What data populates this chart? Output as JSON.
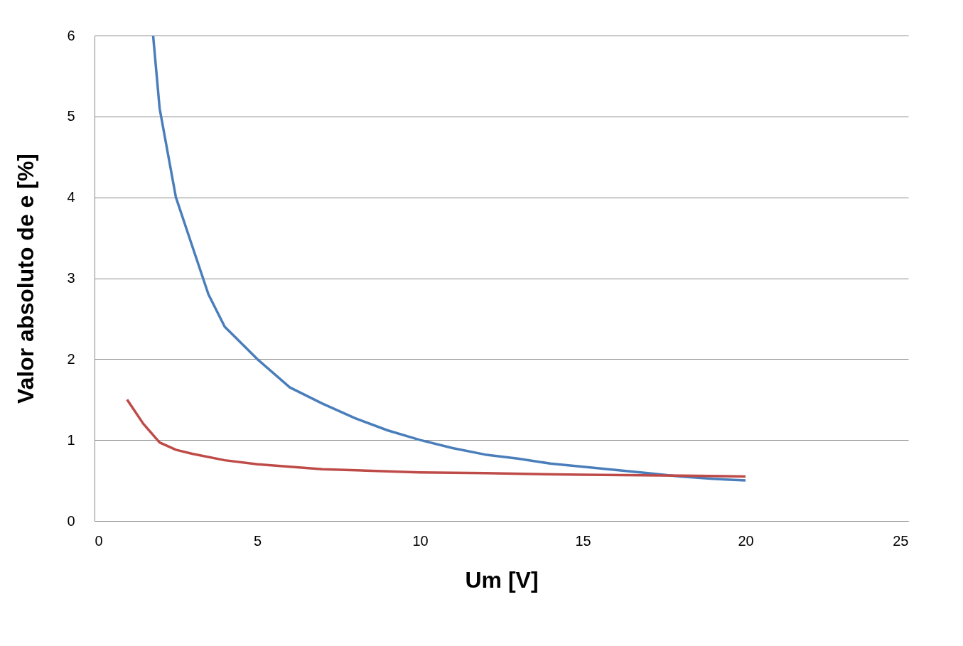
{
  "chart_data": {
    "type": "line",
    "xlabel": "Um [V]",
    "ylabel": "Valor absoluto de e [%]",
    "xlim": [
      0,
      25
    ],
    "xticks": [
      0,
      5,
      10,
      15,
      20,
      25
    ],
    "ylim": [
      0,
      6
    ],
    "yticks": [
      0,
      1,
      2,
      3,
      4,
      5,
      6
    ],
    "grid": "y",
    "legend": false,
    "marker": "none",
    "line_style": "solid",
    "series": [
      {
        "color": "#4a7ebb",
        "x": [
          1.8,
          2,
          2.5,
          3,
          3.5,
          4,
          5,
          6,
          7,
          8,
          9,
          10,
          11,
          12,
          13,
          14,
          15,
          16,
          17,
          18,
          19,
          20
        ],
        "values": [
          6.0,
          5.1,
          4.0,
          3.4,
          2.8,
          2.4,
          2.0,
          1.65,
          1.45,
          1.27,
          1.12,
          1.0,
          0.9,
          0.82,
          0.77,
          0.71,
          0.67,
          0.63,
          0.59,
          0.55,
          0.52,
          0.5
        ]
      },
      {
        "color": "#be4b48",
        "x": [
          1,
          1.5,
          2,
          2.5,
          3,
          4,
          5,
          7,
          10,
          12,
          15,
          18,
          20
        ],
        "values": [
          1.5,
          1.2,
          0.97,
          0.88,
          0.83,
          0.75,
          0.7,
          0.64,
          0.6,
          0.59,
          0.57,
          0.56,
          0.55
        ]
      }
    ]
  }
}
